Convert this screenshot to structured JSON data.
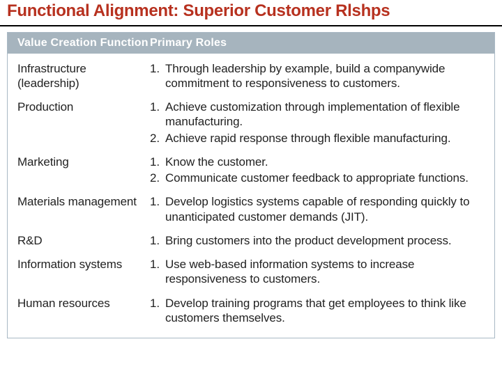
{
  "title_color": "#b7311f",
  "header_bg": "#a6b4be",
  "header_text_color": "#ffffff",
  "border_color": "#a8b8c4",
  "body_bg": "#ffffff",
  "title": "Functional Alignment:  Superior Customer Rlshps",
  "columns": {
    "function": "Value Creation Function",
    "roles": "Primary Roles"
  },
  "rows": [
    {
      "function": "Infrastructure (leadership)",
      "roles": [
        "Through leadership by example, build a companywide commitment to responsiveness to customers."
      ]
    },
    {
      "function": "Production",
      "roles": [
        "Achieve customization through implementation of flexible manufacturing.",
        "Achieve rapid response through flexible manufacturing."
      ]
    },
    {
      "function": "Marketing",
      "roles": [
        "Know the customer.",
        "Communicate customer feedback to appropriate functions."
      ]
    },
    {
      "function": "Materials management",
      "roles": [
        "Develop logistics systems capable of responding quickly to unanticipated customer demands (JIT)."
      ]
    },
    {
      "function": "R&D",
      "roles": [
        "Bring customers into the product development process."
      ]
    },
    {
      "function": "Information systems",
      "roles": [
        "Use web-based information systems to increase responsiveness to customers."
      ]
    },
    {
      "function": "Human resources",
      "roles": [
        "Develop training programs that get employees to think like customers themselves."
      ]
    }
  ]
}
